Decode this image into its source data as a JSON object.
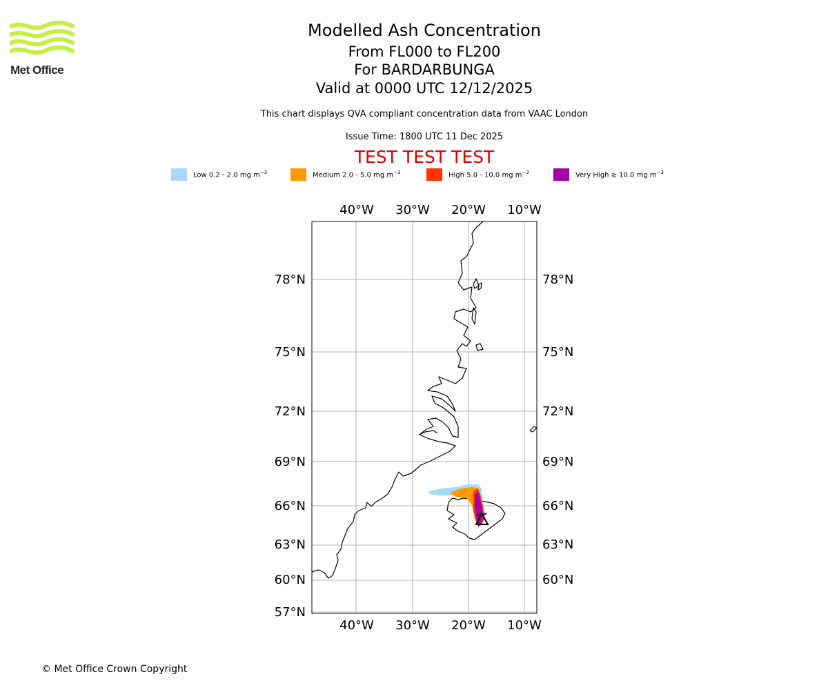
{
  "header": {
    "logo_text": "Met Office",
    "title": "Modelled Ash Concentration",
    "levels": "From FL000 to FL200",
    "volcano": "For BARDARBUNGA",
    "valid": "Valid at 0000 UTC 12/12/2025",
    "description": "This chart displays QVA compliant concentration data from VAAC London",
    "issue_time": "Issue Time: 1800 UTC 11 Dec 2025",
    "test_banner": "TEST TEST TEST"
  },
  "colors": {
    "logo": "#c4f046",
    "low": "#a8d8f8",
    "medium": "#ff9900",
    "high": "#ff3300",
    "very_high": "#a800a8",
    "test_banner": "#dd0000",
    "grid": "#b0b0b0"
  },
  "legend": [
    {
      "label": "Low 0.2 - 2.0 mg m",
      "color_key": "low"
    },
    {
      "label": "Medium 2.0 - 5.0 mg m",
      "color_key": "medium"
    },
    {
      "label": "High 5.0 - 10.0 mg m",
      "color_key": "high"
    },
    {
      "label": "Very High ≥ 10.0 mg m",
      "color_key": "very_high"
    }
  ],
  "legend_unit_exp": "−3",
  "map": {
    "lon_labels": [
      "40°W",
      "30°W",
      "20°W",
      "10°W"
    ],
    "lat_labels_left": [
      "78°N",
      "75°N",
      "72°N",
      "69°N",
      "66°N",
      "63°N",
      "60°N",
      "57°N"
    ],
    "lat_labels_right": [
      "78°N",
      "75°N",
      "72°N",
      "69°N",
      "66°N",
      "63°N",
      "60°N"
    ],
    "volcano_marker": "volcano-triangle-icon"
  },
  "footer": {
    "copyright": "© Met Office Crown Copyright"
  }
}
